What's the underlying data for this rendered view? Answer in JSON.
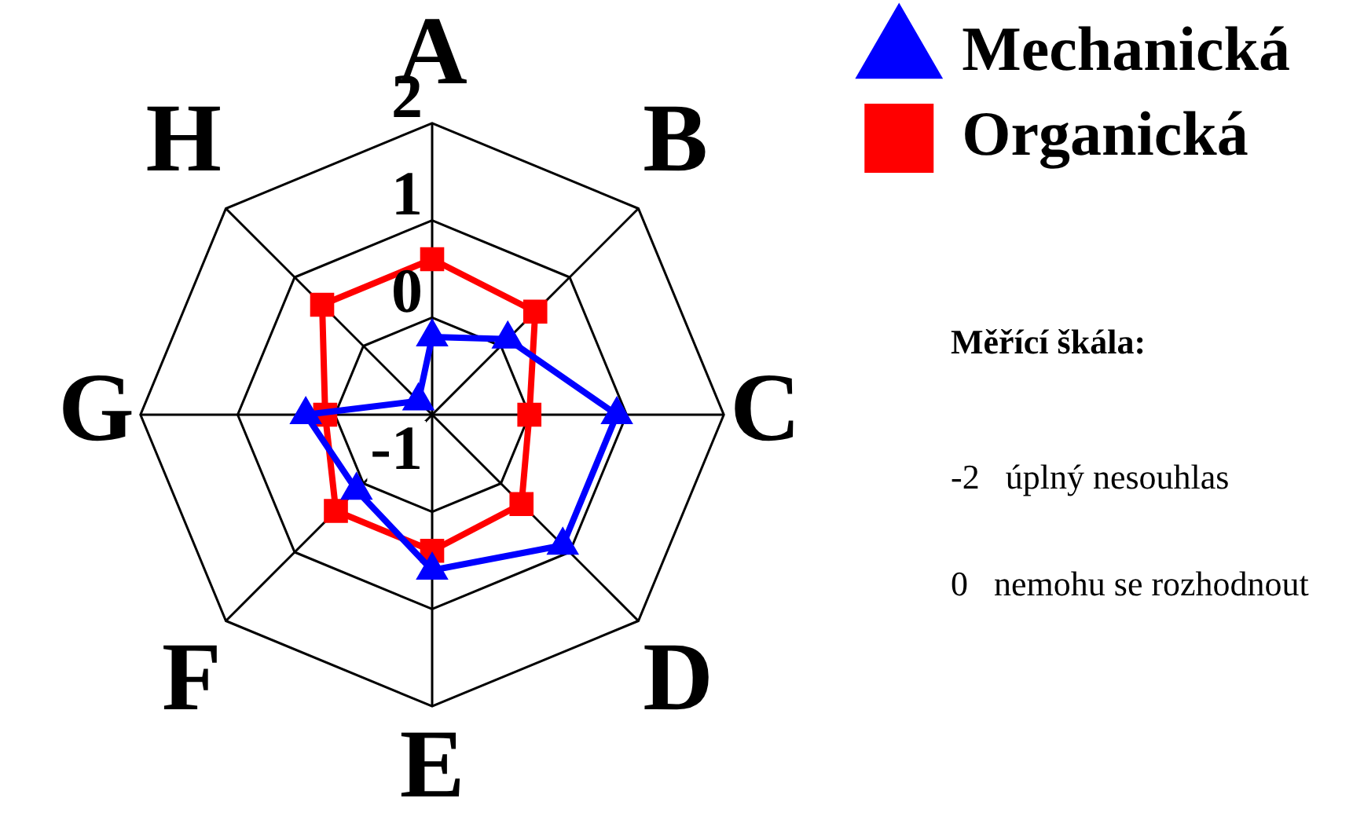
{
  "chart_data": {
    "type": "radar",
    "categories": [
      "A",
      "B",
      "C",
      "D",
      "E",
      "F",
      "G",
      "H"
    ],
    "series": [
      {
        "name": "Mechanická",
        "color": "#0000ff",
        "marker": "triangle",
        "values": [
          -0.2,
          0.1,
          0.9,
          0.9,
          0.6,
          0.1,
          0.3,
          -0.8
        ]
      },
      {
        "name": "Organická",
        "color": "#ff0000",
        "marker": "square",
        "values": [
          0.6,
          0.5,
          0.0,
          0.3,
          0.4,
          0.4,
          0.1,
          0.6
        ]
      }
    ],
    "ylim": [
      -1,
      2
    ],
    "yticks": [
      -1,
      0,
      1,
      2
    ],
    "grid": true,
    "legend": "top right",
    "annotations": [
      "Měřící škála:",
      "-2   úplný nesouhlas",
      "0   nemohu se rozhodnout"
    ]
  }
}
